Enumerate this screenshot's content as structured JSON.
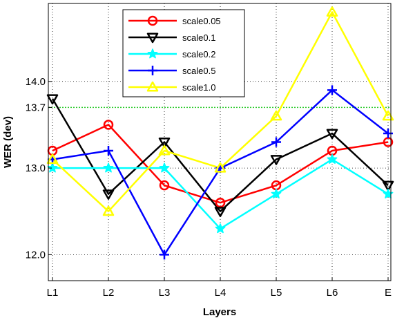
{
  "chart_data": {
    "type": "line",
    "title": "",
    "xlabel": "Layers",
    "ylabel": "WER (dev)",
    "categories": [
      "L1",
      "L2",
      "L3",
      "L4",
      "L5",
      "L6",
      "E"
    ],
    "ylim": [
      11.7,
      14.9
    ],
    "yticks": [
      {
        "value": 12.0,
        "label": "12.0"
      },
      {
        "value": 13.0,
        "label": "13.0"
      },
      {
        "value": 13.7,
        "label": "13.7"
      },
      {
        "value": 14.0,
        "label": "14.0"
      }
    ],
    "grid": "dotted",
    "reference_line": {
      "value": 13.7,
      "color": "#33cc33"
    },
    "legend_position": "top-center",
    "series": [
      {
        "name": "scale0.05",
        "color": "#ff0000",
        "marker": "circle",
        "values": [
          13.2,
          13.5,
          12.8,
          12.6,
          12.8,
          13.2,
          13.3
        ]
      },
      {
        "name": "scale0.1",
        "color": "#000000",
        "marker": "triangle-down",
        "values": [
          13.8,
          12.7,
          13.3,
          12.5,
          13.1,
          13.4,
          12.8
        ]
      },
      {
        "name": "scale0.2",
        "color": "#00ffff",
        "marker": "star",
        "values": [
          13.0,
          13.0,
          13.0,
          12.3,
          12.7,
          13.1,
          12.7
        ]
      },
      {
        "name": "scale0.5",
        "color": "#0000ff",
        "marker": "plus",
        "values": [
          13.1,
          13.2,
          12.0,
          13.0,
          13.3,
          13.9,
          13.4
        ]
      },
      {
        "name": "scale1.0",
        "color": "#ffff00",
        "marker": "triangle-up",
        "values": [
          13.1,
          12.5,
          13.2,
          13.0,
          13.6,
          14.8,
          13.6
        ]
      }
    ]
  }
}
